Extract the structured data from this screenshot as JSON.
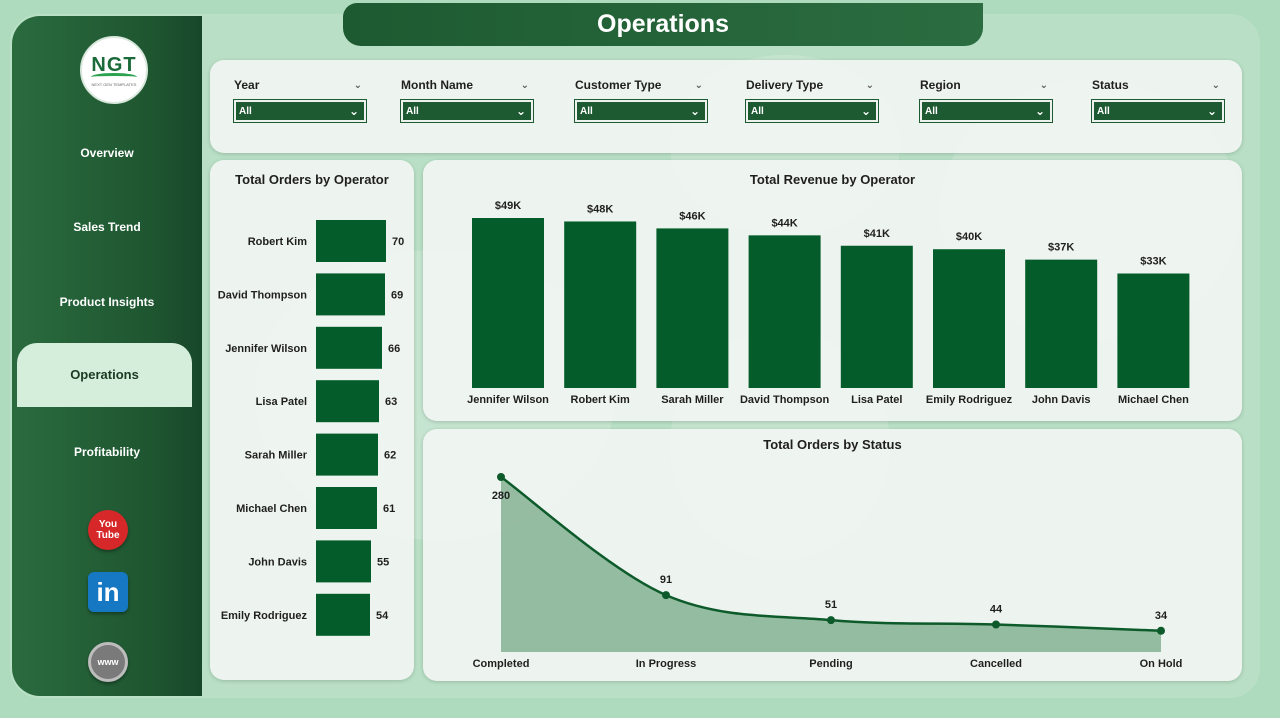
{
  "page": {
    "title": "Operations"
  },
  "logo": {
    "text": "NGT",
    "subtext": "NEXT GEN TEMPLATES"
  },
  "sidebar": {
    "items": [
      {
        "label": "Overview",
        "active": false
      },
      {
        "label": "Sales Trend",
        "active": false
      },
      {
        "label": "Product Insights",
        "active": false
      },
      {
        "label": "Operations",
        "active": true
      },
      {
        "label": "Profitability",
        "active": false
      }
    ],
    "social": {
      "youtube_icon_text": [
        "You",
        "Tube"
      ],
      "linkedin_icon_text": "in",
      "website_icon_text": "www"
    }
  },
  "filters": [
    {
      "label": "Year",
      "value": "All"
    },
    {
      "label": "Month Name",
      "value": "All"
    },
    {
      "label": "Customer Type",
      "value": "All"
    },
    {
      "label": "Delivery Type",
      "value": "All"
    },
    {
      "label": "Region",
      "value": "All"
    },
    {
      "label": "Status",
      "value": "All"
    }
  ],
  "colors": {
    "bar": "#045c2a",
    "accent": "#1e5a31",
    "area": "#8fb89c",
    "line": "#0d5a2a"
  },
  "chart_data": [
    {
      "type": "bar",
      "orientation": "horizontal",
      "title": "Total Orders by Operator",
      "categories": [
        "Robert Kim",
        "David Thompson",
        "Jennifer Wilson",
        "Lisa Patel",
        "Sarah Miller",
        "Michael Chen",
        "John Davis",
        "Emily Rodriguez"
      ],
      "values": [
        70,
        69,
        66,
        63,
        62,
        61,
        55,
        54
      ],
      "data_labels": [
        "70",
        "69",
        "66",
        "63",
        "62",
        "61",
        "55",
        "54"
      ]
    },
    {
      "type": "bar",
      "title": "Total Revenue by Operator",
      "categories": [
        "Jennifer Wilson",
        "Robert Kim",
        "Sarah Miller",
        "David Thompson",
        "Lisa Patel",
        "Emily Rodriguez",
        "John Davis",
        "Michael Chen"
      ],
      "values": [
        49,
        48,
        46,
        44,
        41,
        40,
        37,
        33
      ],
      "data_labels": [
        "$49K",
        "$48K",
        "$46K",
        "$44K",
        "$41K",
        "$40K",
        "$37K",
        "$33K"
      ]
    },
    {
      "type": "area",
      "title": "Total Orders by Status",
      "categories": [
        "Completed",
        "In Progress",
        "Pending",
        "Cancelled",
        "On Hold"
      ],
      "values": [
        280,
        91,
        51,
        44,
        34
      ],
      "data_labels": [
        "280",
        "91",
        "51",
        "44",
        "34"
      ]
    }
  ]
}
